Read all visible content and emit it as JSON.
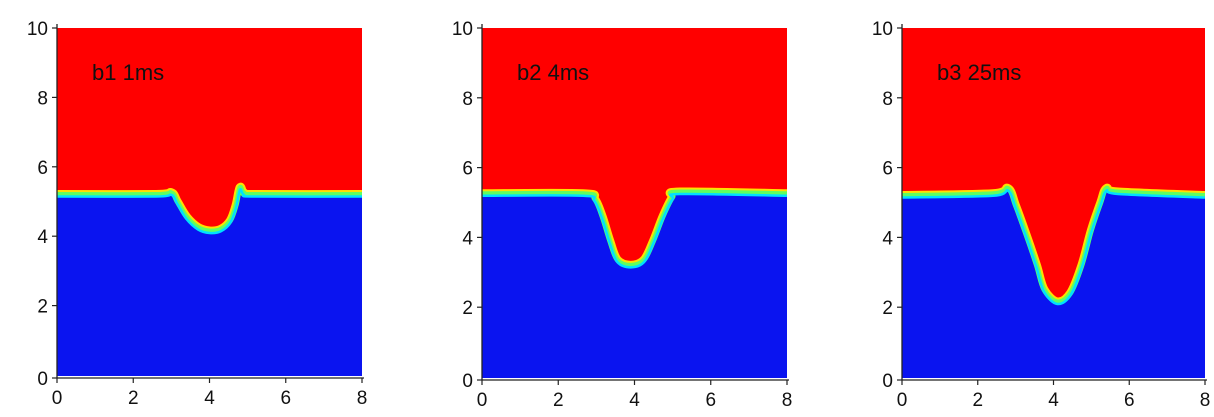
{
  "chart_data": [
    {
      "type": "heatmap",
      "label": "b1 1ms",
      "x_ticks": [
        "0",
        "2",
        "4",
        "6",
        "8"
      ],
      "y_ticks": [
        "0",
        "2",
        "4",
        "6",
        "8",
        "10"
      ],
      "xlim": [
        0,
        8
      ],
      "ylim": [
        0,
        10
      ],
      "colors": {
        "upper": "#ff0000",
        "lower": "#0a14f0",
        "interface": [
          "#00e0ff",
          "#60ff60",
          "#ffe000"
        ]
      },
      "interface_level": 5.2,
      "interface_profile": [
        [
          0,
          5.2
        ],
        [
          2.6,
          5.2
        ],
        [
          3.0,
          5.25
        ],
        [
          3.15,
          5.0
        ],
        [
          3.4,
          4.55
        ],
        [
          3.7,
          4.25
        ],
        [
          4.0,
          4.15
        ],
        [
          4.3,
          4.2
        ],
        [
          4.55,
          4.45
        ],
        [
          4.7,
          4.9
        ],
        [
          4.8,
          5.4
        ],
        [
          4.9,
          5.25
        ],
        [
          5.2,
          5.2
        ],
        [
          8,
          5.2
        ]
      ]
    },
    {
      "type": "heatmap",
      "label": "b2 4ms",
      "x_ticks": [
        "0",
        "2",
        "4",
        "6",
        "8"
      ],
      "y_ticks": [
        "0",
        "2",
        "4",
        "6",
        "8",
        "10"
      ],
      "xlim": [
        0,
        8
      ],
      "ylim": [
        0,
        10
      ],
      "colors": {
        "upper": "#ff0000",
        "lower": "#0a14f0",
        "interface": [
          "#00e0ff",
          "#60ff60",
          "#ffe000"
        ]
      },
      "interface_level": 5.25,
      "interface_profile": [
        [
          0,
          5.25
        ],
        [
          2.65,
          5.25
        ],
        [
          2.95,
          5.1
        ],
        [
          3.15,
          4.6
        ],
        [
          3.35,
          3.9
        ],
        [
          3.55,
          3.35
        ],
        [
          3.9,
          3.2
        ],
        [
          4.25,
          3.35
        ],
        [
          4.5,
          3.9
        ],
        [
          4.75,
          4.6
        ],
        [
          5.0,
          5.15
        ],
        [
          5.2,
          5.3
        ],
        [
          8,
          5.25
        ]
      ]
    },
    {
      "type": "heatmap",
      "label": "b3 25ms",
      "x_ticks": [
        "0",
        "2",
        "4",
        "6",
        "8"
      ],
      "y_ticks": [
        "0",
        "2",
        "4",
        "6",
        "8",
        "10"
      ],
      "xlim": [
        0,
        8
      ],
      "ylim": [
        0,
        10
      ],
      "colors": {
        "upper": "#ff0000",
        "lower": "#0a14f0",
        "interface": [
          "#00e0ff",
          "#60ff60",
          "#ffe000"
        ]
      },
      "interface_level": 5.25,
      "interface_profile": [
        [
          0,
          5.2
        ],
        [
          2.4,
          5.25
        ],
        [
          2.8,
          5.4
        ],
        [
          3.0,
          4.9
        ],
        [
          3.3,
          4.0
        ],
        [
          3.55,
          3.2
        ],
        [
          3.75,
          2.5
        ],
        [
          4.1,
          2.15
        ],
        [
          4.45,
          2.4
        ],
        [
          4.75,
          3.2
        ],
        [
          5.0,
          4.2
        ],
        [
          5.25,
          5.0
        ],
        [
          5.4,
          5.4
        ],
        [
          5.7,
          5.3
        ],
        [
          8,
          5.2
        ]
      ]
    }
  ]
}
